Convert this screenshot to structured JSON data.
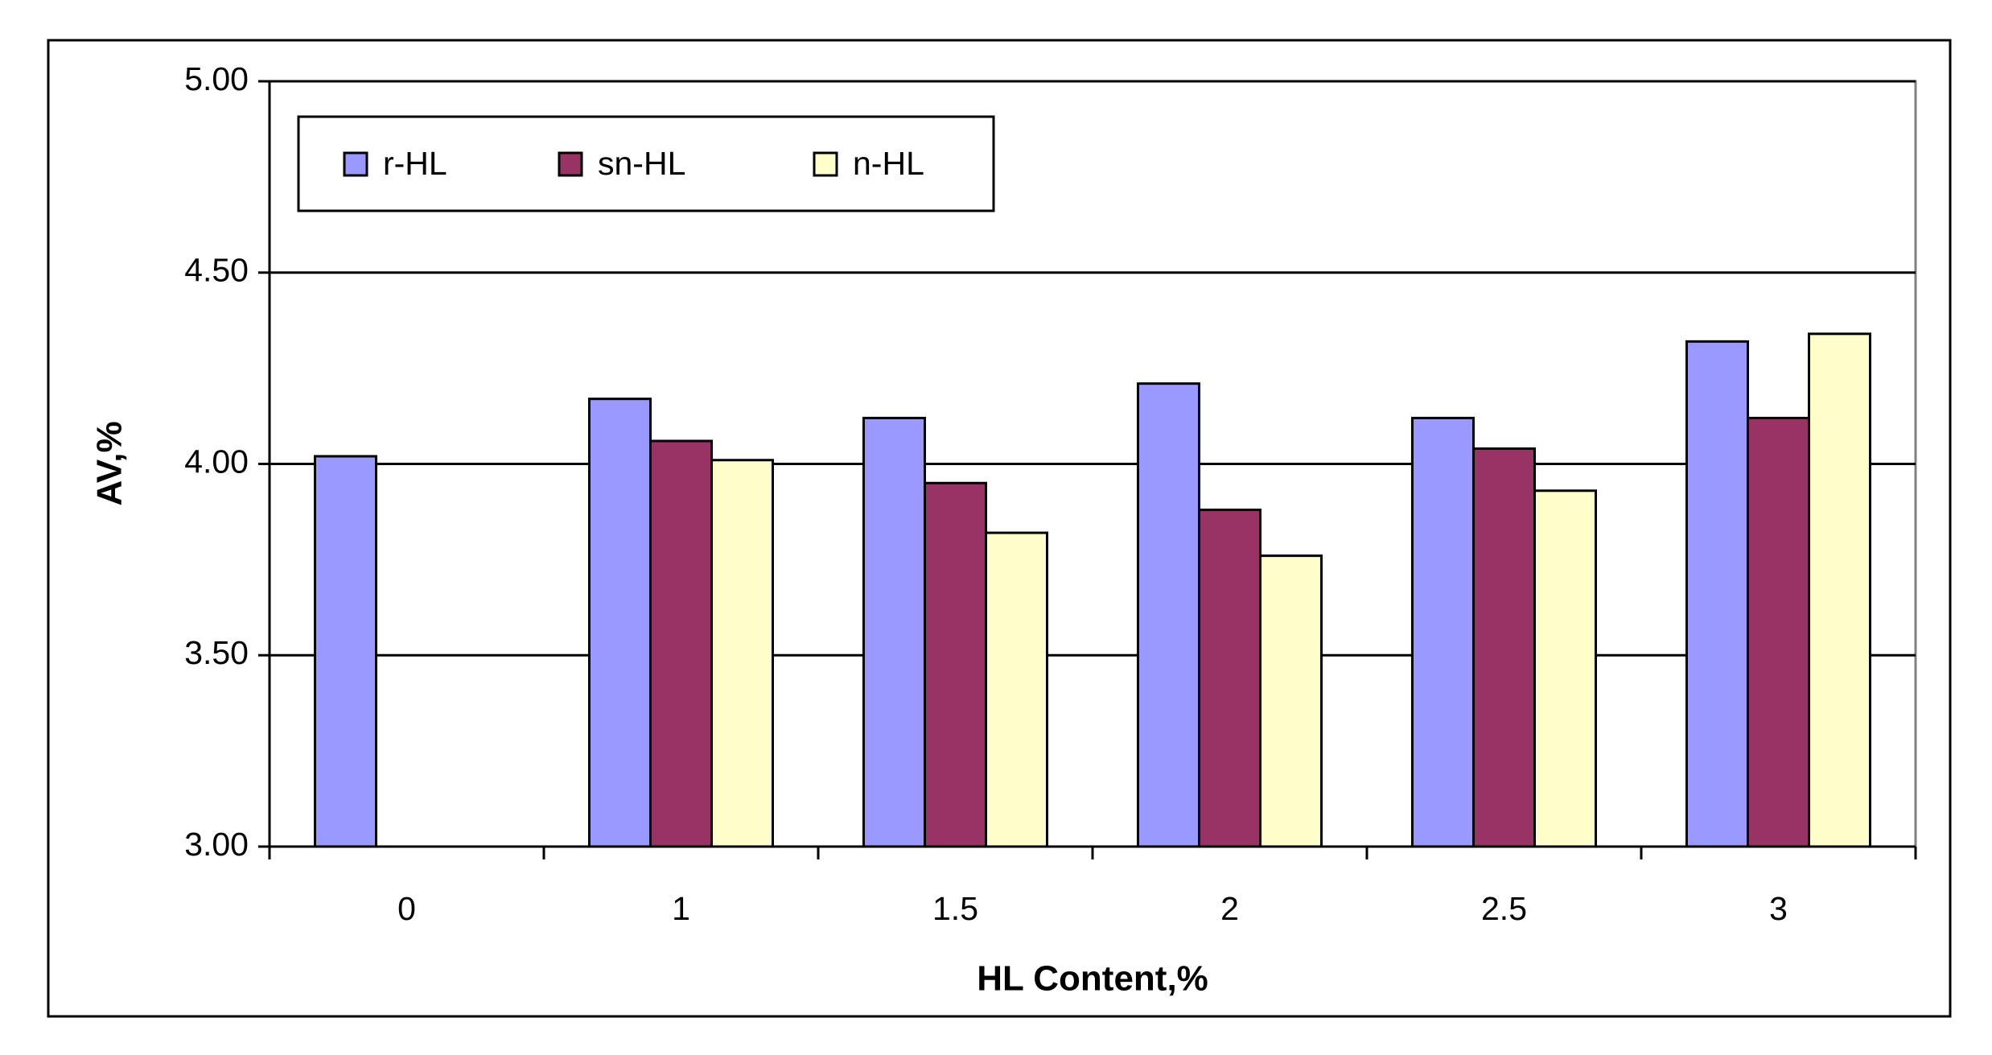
{
  "chart_data": {
    "type": "bar",
    "x_label": "HL Content,%",
    "y_label": "AV,%",
    "categories": [
      "0",
      "1",
      "1.5",
      "2",
      "2.5",
      "3"
    ],
    "series": [
      {
        "name": "r-HL",
        "color": "#9999ff",
        "values": [
          4.02,
          4.17,
          4.12,
          4.21,
          4.12,
          4.32
        ]
      },
      {
        "name": "sn-HL",
        "color": "#993366",
        "values": [
          null,
          4.06,
          3.95,
          3.88,
          4.04,
          4.12
        ]
      },
      {
        "name": "n-HL",
        "color": "#ffffcc",
        "values": [
          null,
          4.01,
          3.82,
          3.76,
          3.93,
          4.34
        ]
      }
    ],
    "ylim": [
      3,
      5
    ],
    "yticks": [
      {
        "value": 3,
        "label": "3.00"
      },
      {
        "value": 3.5,
        "label": "3.50"
      },
      {
        "value": 4,
        "label": "4.00"
      },
      {
        "value": 4.5,
        "label": "4.50"
      },
      {
        "value": 5,
        "label": "5.00"
      }
    ],
    "grid": true,
    "legend": "top-left"
  }
}
